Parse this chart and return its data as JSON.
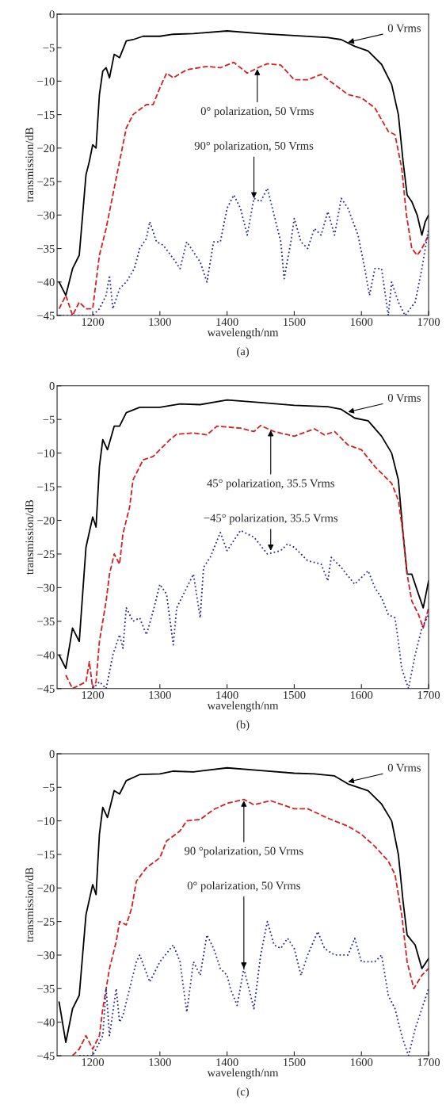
{
  "chart_data": [
    {
      "type": "line",
      "xlabel": "wavelength/nm",
      "ylabel": "transmission/dB",
      "xlim": [
        1147,
        1700
      ],
      "ylim": [
        -45,
        0
      ],
      "xticks": [
        1200,
        1300,
        1400,
        1500,
        1600,
        1700
      ],
      "yticks": [
        -45,
        -40,
        -35,
        -30,
        -25,
        -20,
        -15,
        -10,
        -5,
        0
      ],
      "series": [
        {
          "color": "#000000",
          "line_style": "solid",
          "x": [
            1150,
            1160,
            1170,
            1180,
            1185,
            1190,
            1195,
            1200,
            1205,
            1210,
            1215,
            1220,
            1225,
            1232,
            1240,
            1250,
            1260,
            1275,
            1300,
            1320,
            1350,
            1400,
            1450,
            1500,
            1550,
            1570,
            1590,
            1610,
            1630,
            1645,
            1655,
            1662,
            1668,
            1675,
            1683,
            1690,
            1695,
            1700
          ],
          "values": [
            -40,
            -42,
            -38,
            -36,
            -30,
            -24,
            -22,
            -19.5,
            -20,
            -12,
            -8.5,
            -8,
            -9.5,
            -6,
            -6.5,
            -4,
            -3.8,
            -3.3,
            -3.3,
            -3,
            -2.9,
            -2.5,
            -2.9,
            -3.2,
            -3.5,
            -3.8,
            -4.8,
            -5.5,
            -7.5,
            -10.5,
            -15,
            -22,
            -27,
            -28,
            -30,
            -33,
            -31,
            -30
          ]
        },
        {
          "color": "#d42020",
          "line_style": "dashed",
          "x": [
            1150,
            1160,
            1170,
            1180,
            1190,
            1200,
            1205,
            1210,
            1215,
            1220,
            1230,
            1240,
            1250,
            1260,
            1280,
            1290,
            1300,
            1310,
            1320,
            1340,
            1370,
            1390,
            1410,
            1430,
            1450,
            1460,
            1480,
            1500,
            1520,
            1540,
            1560,
            1580,
            1600,
            1620,
            1640,
            1650,
            1660,
            1667,
            1675,
            1683,
            1690,
            1700
          ],
          "values": [
            -44,
            -42,
            -45,
            -43,
            -44,
            -44,
            -40,
            -36,
            -34,
            -32,
            -27,
            -22,
            -17,
            -15,
            -13.5,
            -13.5,
            -11,
            -8.8,
            -9.5,
            -8.3,
            -7.8,
            -8,
            -7.2,
            -8.8,
            -7.8,
            -7.4,
            -7.6,
            -9.8,
            -9.8,
            -9,
            -10.5,
            -12,
            -12.5,
            -14,
            -17.5,
            -18,
            -23,
            -30,
            -35,
            -36,
            -35,
            -33
          ]
        },
        {
          "color": "#2a2a9a",
          "line_style": "dotted",
          "x": [
            1150,
            1200,
            1210,
            1220,
            1225,
            1230,
            1240,
            1250,
            1262,
            1270,
            1280,
            1285,
            1295,
            1305,
            1320,
            1330,
            1340,
            1350,
            1360,
            1370,
            1380,
            1390,
            1400,
            1410,
            1420,
            1430,
            1440,
            1450,
            1460,
            1470,
            1480,
            1485,
            1495,
            1500,
            1510,
            1520,
            1530,
            1540,
            1550,
            1560,
            1570,
            1580,
            1595,
            1605,
            1612,
            1620,
            1630,
            1640,
            1645,
            1655,
            1665,
            1680,
            1690,
            1695,
            1700
          ],
          "values": [
            -45,
            -45,
            -44,
            -42,
            -39,
            -44,
            -41,
            -40,
            -38,
            -35,
            -33.5,
            -31,
            -34,
            -34.5,
            -36.5,
            -38,
            -34,
            -35.5,
            -37,
            -40,
            -34,
            -34,
            -29,
            -27,
            -29,
            -33,
            -27.5,
            -28,
            -26,
            -30,
            -34,
            -39.5,
            -34,
            -30.5,
            -34,
            -35,
            -32,
            -33,
            -29.5,
            -33,
            -27.5,
            -29,
            -33,
            -38,
            -42,
            -38,
            -38,
            -45,
            -40,
            -43,
            -45,
            -43,
            -38,
            -35,
            -32
          ]
        }
      ],
      "annotations": [
        {
          "text": "0 Vrms",
          "x": 1580,
          "y": -4.2
        },
        {
          "text": "0° polarization, 50 Vrms",
          "x": 1445,
          "y": -8.2
        },
        {
          "text": "90° polarization, 50 Vrms",
          "x": 1440,
          "y": -27.5
        },
        "(a)"
      ]
    },
    {
      "type": "line",
      "xlabel": "wavelength/nm",
      "ylabel": "transmission/dB",
      "xlim": [
        1147,
        1700
      ],
      "ylim": [
        -45,
        0
      ],
      "xticks": [
        1200,
        1300,
        1400,
        1500,
        1600,
        1700
      ],
      "yticks": [
        -45,
        -40,
        -35,
        -30,
        -25,
        -20,
        -15,
        -10,
        -5,
        0
      ],
      "series": [
        {
          "color": "#000000",
          "line_style": "solid",
          "x": [
            1150,
            1160,
            1170,
            1180,
            1185,
            1190,
            1200,
            1205,
            1210,
            1215,
            1222,
            1232,
            1240,
            1250,
            1270,
            1300,
            1330,
            1360,
            1400,
            1450,
            1500,
            1550,
            1570,
            1590,
            1610,
            1630,
            1645,
            1655,
            1662,
            1668,
            1675,
            1685,
            1692,
            1700
          ],
          "values": [
            -40,
            -42,
            -36,
            -38,
            -31,
            -24,
            -19.5,
            -21,
            -12,
            -8,
            -9.5,
            -6,
            -6,
            -4,
            -3.2,
            -3.2,
            -2.7,
            -2.8,
            -2.1,
            -2.5,
            -2.9,
            -3.1,
            -3.5,
            -4.8,
            -5.2,
            -7.5,
            -10,
            -14,
            -22,
            -28,
            -28,
            -31,
            -33,
            -29
          ]
        },
        {
          "color": "#d42020",
          "line_style": "dashed",
          "x": [
            1160,
            1170,
            1190,
            1195,
            1200,
            1205,
            1210,
            1220,
            1225,
            1232,
            1240,
            1245,
            1255,
            1260,
            1275,
            1290,
            1300,
            1315,
            1325,
            1350,
            1370,
            1385,
            1420,
            1440,
            1450,
            1470,
            1500,
            1530,
            1545,
            1560,
            1580,
            1600,
            1620,
            1630,
            1645,
            1655,
            1662,
            1668,
            1675,
            1685,
            1692,
            1700
          ],
          "values": [
            -43,
            -45,
            -44,
            -41,
            -45,
            -44,
            -38,
            -32,
            -28,
            -25,
            -26.5,
            -22,
            -18,
            -14,
            -11,
            -10.5,
            -9.5,
            -8,
            -7.2,
            -7,
            -7.3,
            -6,
            -6.3,
            -6.8,
            -5.9,
            -6.8,
            -7.5,
            -6.4,
            -7.3,
            -6.8,
            -8.8,
            -9.5,
            -12,
            -13,
            -14.5,
            -17,
            -22,
            -28,
            -32,
            -34,
            -36,
            -33
          ]
        },
        {
          "color": "#2a2a9a",
          "line_style": "dotted",
          "x": [
            1200,
            1210,
            1220,
            1230,
            1240,
            1245,
            1250,
            1260,
            1270,
            1280,
            1290,
            1300,
            1310,
            1320,
            1325,
            1340,
            1350,
            1360,
            1365,
            1375,
            1390,
            1400,
            1420,
            1440,
            1460,
            1480,
            1490,
            1500,
            1520,
            1540,
            1550,
            1555,
            1570,
            1590,
            1610,
            1620,
            1630,
            1640,
            1650,
            1655,
            1660,
            1670,
            1680,
            1690,
            1700
          ],
          "values": [
            -45,
            -44,
            -45,
            -40,
            -37,
            -39,
            -33,
            -35,
            -34.5,
            -37,
            -33.5,
            -29.5,
            -31,
            -38.5,
            -33,
            -30,
            -28,
            -34.5,
            -27,
            -25.5,
            -21.8,
            -24.5,
            -21.5,
            -22.5,
            -25,
            -24.5,
            -23.5,
            -24,
            -26,
            -26.5,
            -29,
            -25.5,
            -27,
            -29.5,
            -27.5,
            -30,
            -31.5,
            -34,
            -34.5,
            -38,
            -42,
            -45,
            -40,
            -36,
            -34
          ]
        }
      ],
      "annotations": [
        {
          "text": "0 Vrms",
          "x": 1580,
          "y": -3.9
        },
        {
          "text": "45° polarization, 35.5 Vrms",
          "x": 1465,
          "y": -6.6
        },
        {
          "text": "−45° polarization, 35.5 Vrms",
          "x": 1465,
          "y": -24.5
        },
        "(b)"
      ]
    },
    {
      "type": "line",
      "xlabel": "wavelength/nm",
      "ylabel": "transmission/dB",
      "xlim": [
        1147,
        1700
      ],
      "ylim": [
        -45,
        0
      ],
      "xticks": [
        1200,
        1300,
        1400,
        1500,
        1600,
        1700
      ],
      "yticks": [
        -45,
        -40,
        -35,
        -30,
        -25,
        -20,
        -15,
        -10,
        -5,
        0
      ],
      "series": [
        {
          "color": "#000000",
          "line_style": "solid",
          "x": [
            1150,
            1160,
            1170,
            1180,
            1185,
            1190,
            1200,
            1205,
            1210,
            1215,
            1222,
            1232,
            1240,
            1250,
            1270,
            1300,
            1320,
            1350,
            1400,
            1450,
            1500,
            1530,
            1560,
            1580,
            1610,
            1630,
            1645,
            1655,
            1662,
            1668,
            1680,
            1690,
            1700
          ],
          "values": [
            -37,
            -43,
            -38,
            -36,
            -30,
            -24,
            -19.5,
            -21,
            -12,
            -8,
            -9.5,
            -5.5,
            -6,
            -4,
            -3.1,
            -3,
            -2.6,
            -2.7,
            -2.1,
            -2.5,
            -2.9,
            -3,
            -3.3,
            -4.5,
            -5.5,
            -7.5,
            -10,
            -15,
            -22,
            -27,
            -28.5,
            -32,
            -30.5
          ]
        },
        {
          "color": "#d42020",
          "line_style": "dashed",
          "x": [
            1170,
            1180,
            1190,
            1200,
            1210,
            1215,
            1225,
            1235,
            1240,
            1250,
            1258,
            1265,
            1280,
            1300,
            1310,
            1330,
            1340,
            1360,
            1380,
            1400,
            1425,
            1440,
            1465,
            1500,
            1520,
            1550,
            1580,
            1600,
            1620,
            1640,
            1650,
            1660,
            1668,
            1678,
            1690,
            1700
          ],
          "values": [
            -45,
            -44,
            -42,
            -44,
            -42,
            -38,
            -32,
            -28,
            -25,
            -25.5,
            -23,
            -19,
            -17,
            -15.5,
            -13,
            -11.5,
            -10,
            -9.8,
            -8.3,
            -7.4,
            -6.8,
            -7.6,
            -7,
            -8.2,
            -8.2,
            -9.6,
            -10.8,
            -12,
            -13.8,
            -16,
            -18,
            -24,
            -31,
            -35,
            -33,
            -32
          ]
        },
        {
          "color": "#2a2a9a",
          "line_style": "dotted",
          "x": [
            1180,
            1200,
            1215,
            1220,
            1225,
            1235,
            1240,
            1245,
            1255,
            1265,
            1270,
            1285,
            1290,
            1300,
            1320,
            1330,
            1340,
            1350,
            1360,
            1370,
            1380,
            1390,
            1400,
            1405,
            1415,
            1425,
            1430,
            1440,
            1450,
            1460,
            1470,
            1480,
            1490,
            1500,
            1510,
            1520,
            1535,
            1545,
            1560,
            1580,
            1590,
            1600,
            1620,
            1630,
            1640,
            1650,
            1660,
            1670,
            1680,
            1690,
            1700
          ],
          "values": [
            -45,
            -45,
            -42,
            -35,
            -42,
            -35,
            -40,
            -39,
            -35,
            -31,
            -30,
            -34,
            -33,
            -31,
            -28.5,
            -31,
            -38.5,
            -31,
            -33,
            -27,
            -29,
            -32,
            -33,
            -35,
            -37.5,
            -32,
            -34,
            -38,
            -30,
            -25,
            -28.5,
            -29,
            -27.5,
            -29,
            -33,
            -30,
            -26.5,
            -29,
            -30,
            -30,
            -27.5,
            -31,
            -31,
            -30,
            -36,
            -38,
            -42,
            -45,
            -41,
            -38,
            -35
          ]
        }
      ],
      "annotations": [
        {
          "text": "0 Vrms",
          "x": 1580,
          "y": -4.2
        },
        {
          "text": "90 °polarization, 50 Vrms",
          "x": 1425,
          "y": -7.0
        },
        {
          "text": "0° polarization, 50 Vrms",
          "x": 1425,
          "y": -32
        },
        "(c)"
      ]
    }
  ]
}
